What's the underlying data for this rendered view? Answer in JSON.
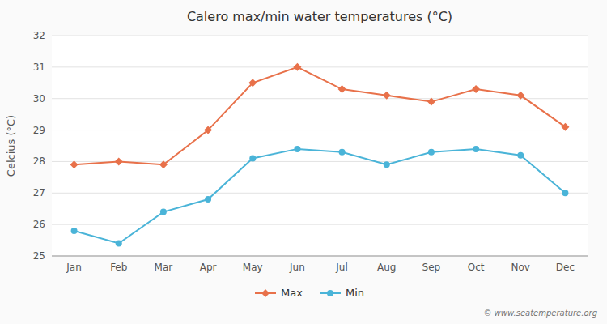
{
  "chart_data": {
    "type": "line",
    "title": "Calero max/min water temperatures (°C)",
    "y_label": "Celcius (°C)",
    "categories": [
      "Jan",
      "Feb",
      "Mar",
      "Apr",
      "May",
      "Jun",
      "Jul",
      "Aug",
      "Sep",
      "Oct",
      "Nov",
      "Dec"
    ],
    "series": [
      {
        "name": "Max",
        "color": "#e8714a",
        "marker": "diamond",
        "values": [
          27.9,
          28.0,
          27.9,
          29.0,
          30.5,
          31.0,
          30.3,
          30.1,
          29.9,
          30.3,
          30.1,
          29.1
        ]
      },
      {
        "name": "Min",
        "color": "#4ab4d8",
        "marker": "circle",
        "values": [
          25.8,
          25.4,
          26.4,
          26.8,
          28.1,
          28.4,
          28.3,
          27.9,
          28.3,
          28.4,
          28.2,
          27.0
        ]
      }
    ],
    "ylim": [
      25,
      32
    ],
    "yticks": [
      25,
      26,
      27,
      28,
      29,
      30,
      31,
      32
    ],
    "grid": true,
    "legend": "bottom",
    "annotations": [
      "© www.seatemperature.org"
    ]
  }
}
